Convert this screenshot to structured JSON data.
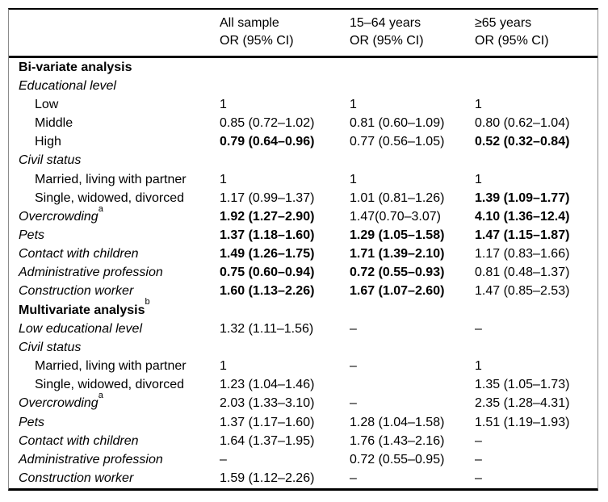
{
  "table": {
    "header": {
      "columns": [
        {
          "title": "All sample",
          "subtitle": "OR (95% CI)"
        },
        {
          "title": "15–64 years",
          "subtitle": "OR (95% CI)"
        },
        {
          "title": "≥65 years",
          "subtitle": "OR (95% CI)"
        }
      ]
    },
    "rows": [
      {
        "label": "Bi-variate analysis",
        "style": "bold",
        "sup": "",
        "cells": [
          {
            "text": "",
            "bold": false
          },
          {
            "text": "",
            "bold": false
          },
          {
            "text": "",
            "bold": false
          }
        ]
      },
      {
        "label": "Educational level",
        "style": "italic",
        "sup": "",
        "cells": [
          {
            "text": "",
            "bold": false
          },
          {
            "text": "",
            "bold": false
          },
          {
            "text": "",
            "bold": false
          }
        ]
      },
      {
        "label": "Low",
        "style": "indent",
        "sup": "",
        "cells": [
          {
            "text": "1",
            "bold": false
          },
          {
            "text": "1",
            "bold": false
          },
          {
            "text": "1",
            "bold": false
          }
        ]
      },
      {
        "label": "Middle",
        "style": "indent",
        "sup": "",
        "cells": [
          {
            "text": "0.85 (0.72–1.02)",
            "bold": false
          },
          {
            "text": "0.81 (0.60–1.09)",
            "bold": false
          },
          {
            "text": "0.80 (0.62–1.04)",
            "bold": false
          }
        ]
      },
      {
        "label": "High",
        "style": "indent",
        "sup": "",
        "cells": [
          {
            "text": "0.79 (0.64–0.96)",
            "bold": true
          },
          {
            "text": "0.77 (0.56–1.05)",
            "bold": false
          },
          {
            "text": "0.52 (0.32–0.84)",
            "bold": true
          }
        ]
      },
      {
        "label": "Civil status",
        "style": "italic",
        "sup": "",
        "cells": [
          {
            "text": "",
            "bold": false
          },
          {
            "text": "",
            "bold": false
          },
          {
            "text": "",
            "bold": false
          }
        ]
      },
      {
        "label": "Married, living with partner",
        "style": "indent",
        "sup": "",
        "cells": [
          {
            "text": "1",
            "bold": false
          },
          {
            "text": "1",
            "bold": false
          },
          {
            "text": "1",
            "bold": false
          }
        ]
      },
      {
        "label": "Single, widowed, divorced",
        "style": "indent",
        "sup": "",
        "cells": [
          {
            "text": "1.17 (0.99–1.37)",
            "bold": false
          },
          {
            "text": "1.01 (0.81–1.26)",
            "bold": false
          },
          {
            "text": "1.39 (1.09–1.77)",
            "bold": true
          }
        ]
      },
      {
        "label": "Overcrowding",
        "style": "italic",
        "sup": "a",
        "cells": [
          {
            "text": "1.92 (1.27–2.90)",
            "bold": true
          },
          {
            "text": "1.47(0.70–3.07)",
            "bold": false
          },
          {
            "text": "4.10 (1.36–12.4)",
            "bold": true
          }
        ]
      },
      {
        "label": "Pets",
        "style": "italic",
        "sup": "",
        "cells": [
          {
            "text": "1.37 (1.18–1.60)",
            "bold": true
          },
          {
            "text": "1.29 (1.05–1.58)",
            "bold": true
          },
          {
            "text": "1.47 (1.15–1.87)",
            "bold": true
          }
        ]
      },
      {
        "label": "Contact with children",
        "style": "italic",
        "sup": "",
        "cells": [
          {
            "text": "1.49 (1.26–1.75)",
            "bold": true
          },
          {
            "text": "1.71 (1.39–2.10)",
            "bold": true
          },
          {
            "text": "1.17 (0.83–1.66)",
            "bold": false
          }
        ]
      },
      {
        "label": "Administrative profession",
        "style": "italic",
        "sup": "",
        "cells": [
          {
            "text": "0.75 (0.60–0.94)",
            "bold": true
          },
          {
            "text": "0.72 (0.55–0.93)",
            "bold": true
          },
          {
            "text": "0.81 (0.48–1.37)",
            "bold": false
          }
        ]
      },
      {
        "label": "Construction worker",
        "style": "italic",
        "sup": "",
        "cells": [
          {
            "text": "1.60 (1.13–2.26)",
            "bold": true
          },
          {
            "text": "1.67 (1.07–2.60)",
            "bold": true
          },
          {
            "text": "1.47 (0.85–2.53)",
            "bold": false
          }
        ]
      },
      {
        "label": "Multivariate analysis",
        "style": "bold",
        "sup": "b",
        "cells": [
          {
            "text": "",
            "bold": false
          },
          {
            "text": "",
            "bold": false
          },
          {
            "text": "",
            "bold": false
          }
        ]
      },
      {
        "label": "Low educational level",
        "style": "italic",
        "sup": "",
        "cells": [
          {
            "text": "1.32 (1.11–1.56)",
            "bold": false
          },
          {
            "text": "–",
            "bold": false
          },
          {
            "text": "–",
            "bold": false
          }
        ]
      },
      {
        "label": "Civil status",
        "style": "italic",
        "sup": "",
        "cells": [
          {
            "text": "",
            "bold": false
          },
          {
            "text": "",
            "bold": false
          },
          {
            "text": "",
            "bold": false
          }
        ]
      },
      {
        "label": "Married, living with partner",
        "style": "indent",
        "sup": "",
        "cells": [
          {
            "text": "1",
            "bold": false
          },
          {
            "text": "–",
            "bold": false
          },
          {
            "text": "1",
            "bold": false
          }
        ]
      },
      {
        "label": "Single, widowed, divorced",
        "style": "indent",
        "sup": "",
        "cells": [
          {
            "text": "1.23 (1.04–1.46)",
            "bold": false
          },
          {
            "text": "",
            "bold": false
          },
          {
            "text": "1.35 (1.05–1.73)",
            "bold": false
          }
        ]
      },
      {
        "label": "Overcrowding",
        "style": "italic",
        "sup": "a",
        "cells": [
          {
            "text": "2.03 (1.33–3.10)",
            "bold": false
          },
          {
            "text": "–",
            "bold": false
          },
          {
            "text": "2.35 (1.28–4.31)",
            "bold": false
          }
        ]
      },
      {
        "label": "Pets",
        "style": "italic",
        "sup": "",
        "cells": [
          {
            "text": "1.37 (1.17–1.60)",
            "bold": false
          },
          {
            "text": "1.28 (1.04–1.58)",
            "bold": false
          },
          {
            "text": "1.51 (1.19–1.93)",
            "bold": false
          }
        ]
      },
      {
        "label": "Contact with children",
        "style": "italic",
        "sup": "",
        "cells": [
          {
            "text": "1.64 (1.37–1.95)",
            "bold": false
          },
          {
            "text": "1.76 (1.43–2.16)",
            "bold": false
          },
          {
            "text": "–",
            "bold": false
          }
        ]
      },
      {
        "label": "Administrative profession",
        "style": "italic",
        "sup": "",
        "cells": [
          {
            "text": "–",
            "bold": false
          },
          {
            "text": "0.72 (0.55–0.95)",
            "bold": false
          },
          {
            "text": "–",
            "bold": false
          }
        ]
      },
      {
        "label": "Construction worker",
        "style": "italic",
        "sup": "",
        "cells": [
          {
            "text": "1.59 (1.12–2.26)",
            "bold": false
          },
          {
            "text": "–",
            "bold": false
          },
          {
            "text": "–",
            "bold": false
          }
        ]
      }
    ]
  }
}
